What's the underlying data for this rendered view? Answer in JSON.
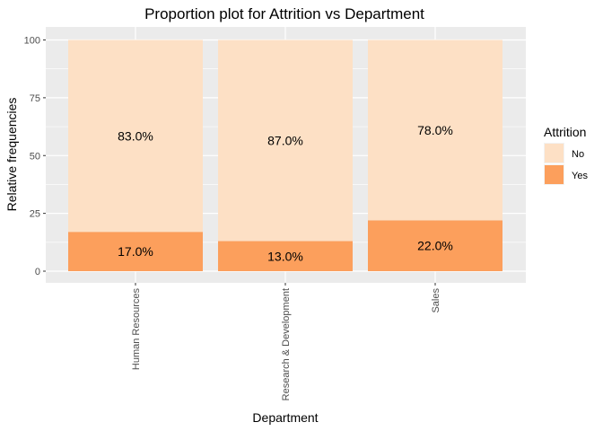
{
  "chart_data": {
    "type": "bar",
    "stacked": true,
    "title": "Proportion plot for Attrition vs Department",
    "xlabel": "Department",
    "ylabel": "Relative frequencies",
    "ylim": [
      0,
      100
    ],
    "yticks": [
      "0",
      "25",
      "50",
      "75",
      "100"
    ],
    "categories": [
      "Human Resources",
      "Research & Development",
      "Sales"
    ],
    "series": [
      {
        "name": "Yes",
        "values": [
          17,
          13,
          22
        ],
        "labels": [
          "17.0%",
          "13.0%",
          "22.0%"
        ],
        "color": "#fc9f5c"
      },
      {
        "name": "No",
        "values": [
          83,
          87,
          78
        ],
        "labels": [
          "83.0%",
          "87.0%",
          "78.0%"
        ],
        "color": "#fde0c5"
      }
    ],
    "legend": {
      "title": "Attrition",
      "position": "right",
      "entries": [
        {
          "label": "No",
          "color": "#fde0c5"
        },
        {
          "label": "Yes",
          "color": "#fc9f5c"
        }
      ]
    },
    "panel_background": "#ebebeb",
    "grid": true
  }
}
